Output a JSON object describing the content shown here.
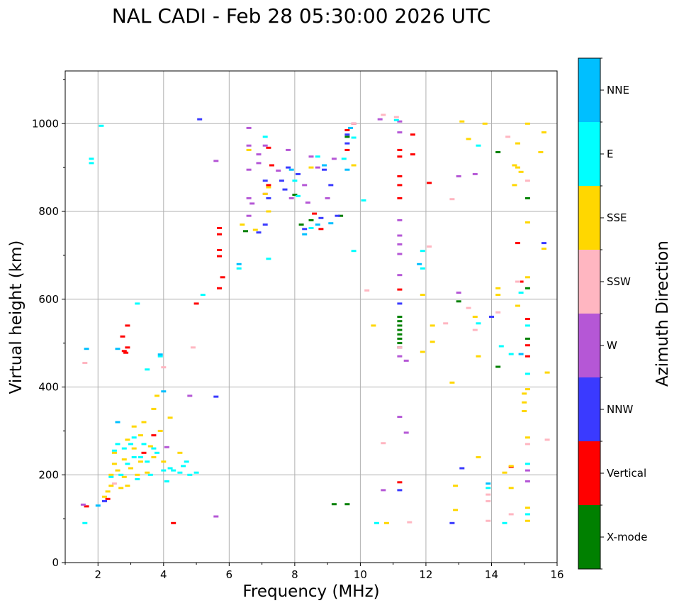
{
  "chart_data": {
    "type": "scatter",
    "title": "NAL CADI - Feb 28 05:30:00 2026 UTC",
    "xlabel": "Frequency (MHz)",
    "ylabel": "Virtual height (km)",
    "xlim": [
      1,
      16
    ],
    "ylim": [
      0,
      1120
    ],
    "x_ticks": [
      2,
      4,
      6,
      8,
      10,
      12,
      14,
      16
    ],
    "y_ticks": [
      0,
      200,
      400,
      600,
      800,
      1000
    ],
    "grid": true,
    "colorbar": {
      "label": "Azimuth Direction",
      "categories": [
        {
          "name": "X-mode",
          "color": "#008000"
        },
        {
          "name": "Vertical",
          "color": "#ff0000"
        },
        {
          "name": "NNW",
          "color": "#3a3aff"
        },
        {
          "name": "W",
          "color": "#b557d6"
        },
        {
          "name": "SSW",
          "color": "#ffb6c1"
        },
        {
          "name": "SSE",
          "color": "#ffd700"
        },
        {
          "name": "E",
          "color": "#00ffff"
        },
        {
          "name": "NNE",
          "color": "#00bfff"
        }
      ]
    },
    "series": [
      {
        "name": "X-mode",
        "points": [
          [
            6.5,
            755
          ],
          [
            8.0,
            838
          ],
          [
            8.2,
            770
          ],
          [
            9.2,
            133
          ],
          [
            9.6,
            133
          ],
          [
            11.2,
            490
          ],
          [
            11.2,
            560
          ],
          [
            11.2,
            550
          ],
          [
            11.2,
            540
          ],
          [
            11.2,
            530
          ],
          [
            11.2,
            520
          ],
          [
            11.2,
            510
          ],
          [
            11.2,
            500
          ],
          [
            13.0,
            595
          ],
          [
            14.2,
            446
          ],
          [
            14.2,
            935
          ],
          [
            15.1,
            830
          ],
          [
            15.1,
            625
          ],
          [
            15.1,
            510
          ],
          [
            9.4,
            790
          ],
          [
            9.6,
            970
          ],
          [
            8.5,
            780
          ]
        ]
      },
      {
        "name": "Vertical",
        "points": [
          [
            1.65,
            128
          ],
          [
            2.3,
            145
          ],
          [
            2.8,
            482
          ],
          [
            2.85,
            478
          ],
          [
            2.9,
            490
          ],
          [
            2.9,
            540
          ],
          [
            2.75,
            515
          ],
          [
            4.3,
            90
          ],
          [
            5.0,
            590
          ],
          [
            5.7,
            762
          ],
          [
            5.7,
            748
          ],
          [
            5.7,
            712
          ],
          [
            5.7,
            698
          ],
          [
            5.7,
            625
          ],
          [
            5.8,
            650
          ],
          [
            7.2,
            945
          ],
          [
            7.2,
            860
          ],
          [
            7.3,
            905
          ],
          [
            8.6,
            795
          ],
          [
            8.8,
            760
          ],
          [
            9.6,
            985
          ],
          [
            9.6,
            940
          ],
          [
            9.8,
            1000
          ],
          [
            11.2,
            940
          ],
          [
            11.2,
            925
          ],
          [
            11.2,
            880
          ],
          [
            11.2,
            860
          ],
          [
            11.2,
            830
          ],
          [
            11.2,
            622
          ],
          [
            11.2,
            183
          ],
          [
            11.6,
            975
          ],
          [
            11.6,
            930
          ],
          [
            12.1,
            865
          ],
          [
            14.6,
            218
          ],
          [
            14.9,
            640
          ],
          [
            14.8,
            728
          ],
          [
            15.1,
            470
          ],
          [
            15.1,
            555
          ],
          [
            15.1,
            495
          ],
          [
            3.7,
            290
          ],
          [
            3.4,
            250
          ]
        ]
      },
      {
        "name": "NNW",
        "points": [
          [
            2.2,
            140
          ],
          [
            5.1,
            1010
          ],
          [
            5.6,
            378
          ],
          [
            6.9,
            752
          ],
          [
            7.1,
            770
          ],
          [
            7.1,
            870
          ],
          [
            7.2,
            830
          ],
          [
            7.6,
            870
          ],
          [
            7.7,
            850
          ],
          [
            7.8,
            900
          ],
          [
            8.1,
            885
          ],
          [
            8.3,
            760
          ],
          [
            8.8,
            785
          ],
          [
            8.9,
            895
          ],
          [
            9.1,
            860
          ],
          [
            9.3,
            790
          ],
          [
            9.6,
            975
          ],
          [
            9.6,
            955
          ],
          [
            11.2,
            165
          ],
          [
            11.2,
            590
          ],
          [
            12.8,
            90
          ],
          [
            13.1,
            215
          ],
          [
            15.6,
            728
          ],
          [
            14.0,
            560
          ]
        ]
      },
      {
        "name": "W",
        "points": [
          [
            1.55,
            132
          ],
          [
            4.1,
            263
          ],
          [
            4.8,
            380
          ],
          [
            5.6,
            915
          ],
          [
            5.6,
            105
          ],
          [
            6.6,
            990
          ],
          [
            6.6,
            950
          ],
          [
            6.6,
            895
          ],
          [
            6.6,
            830
          ],
          [
            6.6,
            790
          ],
          [
            6.7,
            818
          ],
          [
            6.9,
            930
          ],
          [
            6.9,
            910
          ],
          [
            7.1,
            950
          ],
          [
            7.1,
            840
          ],
          [
            7.5,
            893
          ],
          [
            7.8,
            940
          ],
          [
            7.9,
            830
          ],
          [
            8.3,
            860
          ],
          [
            8.4,
            820
          ],
          [
            8.5,
            925
          ],
          [
            8.7,
            900
          ],
          [
            9.0,
            830
          ],
          [
            9.2,
            920
          ],
          [
            9.8,
            1000
          ],
          [
            10.6,
            1010
          ],
          [
            10.7,
            165
          ],
          [
            11.2,
            1005
          ],
          [
            11.2,
            980
          ],
          [
            11.2,
            780
          ],
          [
            11.2,
            745
          ],
          [
            11.2,
            725
          ],
          [
            11.2,
            703
          ],
          [
            11.2,
            655
          ],
          [
            11.2,
            490
          ],
          [
            11.2,
            470
          ],
          [
            11.2,
            332
          ],
          [
            11.4,
            460
          ],
          [
            11.4,
            296
          ],
          [
            13.0,
            880
          ],
          [
            13.0,
            615
          ],
          [
            13.5,
            885
          ],
          [
            15.1,
            210
          ],
          [
            15.1,
            185
          ]
        ]
      },
      {
        "name": "SSW",
        "points": [
          [
            1.6,
            455
          ],
          [
            2.5,
            180
          ],
          [
            4.9,
            490
          ],
          [
            4.0,
            445
          ],
          [
            10.2,
            620
          ],
          [
            10.7,
            272
          ],
          [
            10.7,
            1020
          ],
          [
            11.1,
            1015
          ],
          [
            11.2,
            490
          ],
          [
            11.5,
            92
          ],
          [
            12.1,
            720
          ],
          [
            12.6,
            545
          ],
          [
            12.8,
            828
          ],
          [
            13.3,
            580
          ],
          [
            13.5,
            530
          ],
          [
            13.9,
            95
          ],
          [
            13.9,
            140
          ],
          [
            13.9,
            155
          ],
          [
            14.2,
            570
          ],
          [
            14.5,
            970
          ],
          [
            14.6,
            110
          ],
          [
            15.1,
            870
          ],
          [
            15.1,
            270
          ],
          [
            15.7,
            280
          ],
          [
            14.8,
            640
          ],
          [
            9.8,
            1000
          ]
        ]
      },
      {
        "name": "SSE",
        "points": [
          [
            2.2,
            150
          ],
          [
            2.3,
            162
          ],
          [
            2.4,
            175
          ],
          [
            2.4,
            200
          ],
          [
            2.5,
            225
          ],
          [
            2.5,
            250
          ],
          [
            2.6,
            210
          ],
          [
            2.7,
            170
          ],
          [
            2.8,
            195
          ],
          [
            2.8,
            235
          ],
          [
            2.9,
            175
          ],
          [
            2.9,
            280
          ],
          [
            3.0,
            215
          ],
          [
            3.1,
            260
          ],
          [
            3.1,
            310
          ],
          [
            3.2,
            200
          ],
          [
            3.3,
            230
          ],
          [
            3.3,
            290
          ],
          [
            3.4,
            320
          ],
          [
            3.5,
            205
          ],
          [
            3.6,
            265
          ],
          [
            3.7,
            240
          ],
          [
            3.7,
            350
          ],
          [
            3.8,
            380
          ],
          [
            3.9,
            300
          ],
          [
            4.0,
            230
          ],
          [
            4.2,
            330
          ],
          [
            4.5,
            250
          ],
          [
            6.4,
            770
          ],
          [
            6.6,
            940
          ],
          [
            6.8,
            758
          ],
          [
            7.1,
            840
          ],
          [
            7.2,
            855
          ],
          [
            7.2,
            800
          ],
          [
            8.5,
            900
          ],
          [
            9.8,
            905
          ],
          [
            10.4,
            540
          ],
          [
            10.8,
            90
          ],
          [
            11.9,
            610
          ],
          [
            11.9,
            480
          ],
          [
            12.2,
            540
          ],
          [
            12.2,
            503
          ],
          [
            12.8,
            410
          ],
          [
            12.9,
            120
          ],
          [
            12.9,
            175
          ],
          [
            13.1,
            1005
          ],
          [
            13.3,
            965
          ],
          [
            13.5,
            560
          ],
          [
            13.6,
            470
          ],
          [
            13.6,
            240
          ],
          [
            13.8,
            1000
          ],
          [
            14.2,
            625
          ],
          [
            14.2,
            610
          ],
          [
            14.4,
            205
          ],
          [
            14.6,
            170
          ],
          [
            14.6,
            220
          ],
          [
            14.7,
            905
          ],
          [
            14.7,
            860
          ],
          [
            14.8,
            955
          ],
          [
            14.8,
            900
          ],
          [
            14.8,
            585
          ],
          [
            14.9,
            890
          ],
          [
            15.0,
            385
          ],
          [
            15.0,
            365
          ],
          [
            15.0,
            345
          ],
          [
            15.1,
            1000
          ],
          [
            15.1,
            775
          ],
          [
            15.1,
            650
          ],
          [
            15.1,
            395
          ],
          [
            15.1,
            285
          ],
          [
            15.1,
            125
          ],
          [
            15.1,
            95
          ],
          [
            15.5,
            935
          ],
          [
            15.6,
            980
          ],
          [
            15.6,
            715
          ],
          [
            15.7,
            433
          ]
        ]
      },
      {
        "name": "E",
        "points": [
          [
            1.6,
            90
          ],
          [
            1.8,
            920
          ],
          [
            1.8,
            910
          ],
          [
            2.1,
            995
          ],
          [
            2.4,
            195
          ],
          [
            2.5,
            255
          ],
          [
            2.6,
            270
          ],
          [
            2.7,
            200
          ],
          [
            2.8,
            260
          ],
          [
            2.9,
            225
          ],
          [
            3.0,
            270
          ],
          [
            3.1,
            285
          ],
          [
            3.1,
            240
          ],
          [
            3.2,
            190
          ],
          [
            3.2,
            590
          ],
          [
            3.3,
            240
          ],
          [
            3.4,
            270
          ],
          [
            3.5,
            230
          ],
          [
            3.5,
            440
          ],
          [
            3.6,
            200
          ],
          [
            3.7,
            260
          ],
          [
            3.8,
            250
          ],
          [
            3.9,
            470
          ],
          [
            4.0,
            210
          ],
          [
            4.1,
            185
          ],
          [
            4.2,
            215
          ],
          [
            4.3,
            210
          ],
          [
            4.5,
            205
          ],
          [
            4.6,
            220
          ],
          [
            4.7,
            230
          ],
          [
            4.8,
            200
          ],
          [
            5.0,
            205
          ],
          [
            5.2,
            610
          ],
          [
            6.3,
            670
          ],
          [
            7.1,
            970
          ],
          [
            7.2,
            692
          ],
          [
            8.0,
            870
          ],
          [
            8.1,
            835
          ],
          [
            8.5,
            762
          ],
          [
            8.7,
            925
          ],
          [
            9.5,
            920
          ],
          [
            9.8,
            968
          ],
          [
            9.8,
            710
          ],
          [
            10.1,
            825
          ],
          [
            10.5,
            90
          ],
          [
            11.1,
            1008
          ],
          [
            11.9,
            710
          ],
          [
            11.9,
            670
          ],
          [
            13.6,
            545
          ],
          [
            13.6,
            950
          ],
          [
            13.9,
            170
          ],
          [
            14.4,
            90
          ],
          [
            14.6,
            475
          ],
          [
            14.9,
            615
          ],
          [
            15.1,
            430
          ],
          [
            15.1,
            540
          ],
          [
            15.1,
            225
          ],
          [
            15.1,
            110
          ],
          [
            14.3,
            493
          ]
        ]
      },
      {
        "name": "NNE",
        "points": [
          [
            1.65,
            487
          ],
          [
            2.0,
            130
          ],
          [
            2.6,
            487
          ],
          [
            6.3,
            680
          ],
          [
            7.9,
            895
          ],
          [
            8.3,
            748
          ],
          [
            8.7,
            770
          ],
          [
            8.9,
            905
          ],
          [
            9.1,
            773
          ],
          [
            9.6,
            895
          ],
          [
            9.7,
            990
          ],
          [
            11.8,
            680
          ],
          [
            13.9,
            180
          ],
          [
            14.9,
            475
          ],
          [
            3.9,
            474
          ],
          [
            2.6,
            320
          ],
          [
            4.0,
            390
          ]
        ]
      }
    ]
  }
}
